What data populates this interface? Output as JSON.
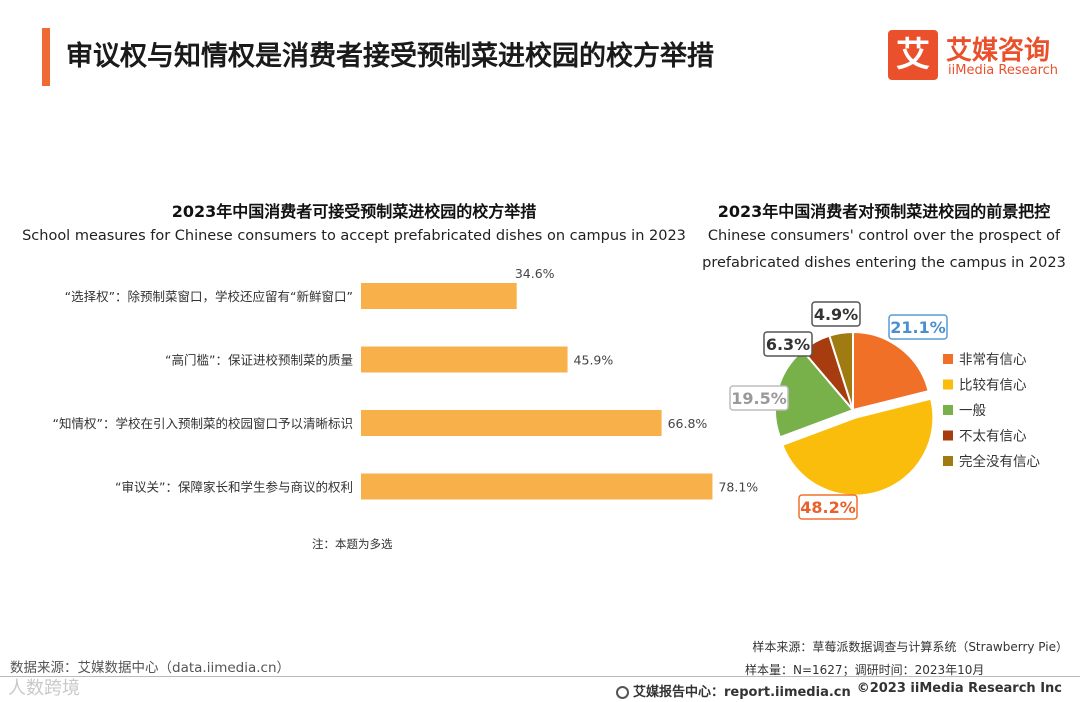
{
  "header": {
    "title": "审议权与知情权是消费者接受预制菜进校园的校方举措",
    "brand_mark": "艾",
    "brand_cn": "艾媒咨询",
    "brand_en": "iiMedia Research"
  },
  "chart_data": [
    {
      "type": "bar",
      "orientation": "horizontal",
      "title": "2023年中国消费者可接受预制菜进校园的校方举措",
      "subtitle": "School measures for Chinese consumers to accept prefabricated dishes on campus in 2023",
      "categories": [
        "“选择权”：除预制菜窗口，学校还应留有“新鲜窗口”",
        "“高门槛”：保证进校预制菜的质量",
        "“知情权”：学校在引入预制菜的校园窗口予以清晰标识",
        "“审议关”：保障家长和学生参与商议的权利"
      ],
      "values": [
        34.6,
        45.9,
        66.8,
        78.1
      ],
      "value_labels": [
        "34.6%",
        "45.9%",
        "66.8%",
        "78.1%"
      ],
      "unit": "%",
      "color": "#f8b04a",
      "note": "注：本题为多选"
    },
    {
      "type": "pie",
      "title": "2023年中国消费者对预制菜进校园的前景把控",
      "subtitle_lines": [
        "Chinese consumers' control over the prospect of",
        "prefabricated dishes entering the campus in 2023"
      ],
      "slices": [
        {
          "label": "非常有信心",
          "value": 21.1,
          "display": "21.1%",
          "color": "#f07028",
          "border": "#5a9ad5"
        },
        {
          "label": "比较有信心",
          "value": 48.2,
          "display": "48.2%",
          "color": "#fbbd0b",
          "border": "#f07028"
        },
        {
          "label": "一般",
          "value": 19.5,
          "display": "19.5%",
          "color": "#78b04a",
          "border": "#bdbdbd"
        },
        {
          "label": "不太有信心",
          "value": 6.3,
          "display": "6.3%",
          "color": "#a63c0f",
          "border": "#555555"
        },
        {
          "label": "完全没有信心",
          "value": 4.9,
          "display": "4.9%",
          "color": "#a07b12",
          "border": "#555555"
        }
      ],
      "legend_position": "right"
    }
  ],
  "footer": {
    "data_source": "数据来源：艾媒数据中心（data.iimedia.cn）",
    "watermark": "人数跨境",
    "sample_source": "样本来源：草莓派数据调查与计算系统（Strawberry Pie）",
    "sample_size": "样本量：N=1627；调研时间：2023年10月",
    "report_center": "艾媒报告中心：report.iimedia.cn",
    "copyright": "©2023  iiMedia Research  Inc"
  }
}
